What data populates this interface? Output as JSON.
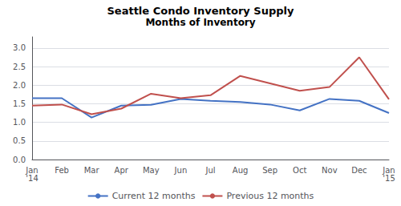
{
  "chart_data": {
    "type": "line",
    "title": "Seattle Condo Inventory Supply",
    "subtitle": "Months of Inventory",
    "categories": [
      "Jan\n'14",
      "Feb",
      "Mar",
      "Apr",
      "May",
      "Jun",
      "Jul",
      "Aug",
      "Sep",
      "Oct",
      "Nov",
      "Dec",
      "Jan\n'15"
    ],
    "series": [
      {
        "name": "Current 12 months",
        "color": "#4472C4",
        "values": [
          1.65,
          1.65,
          1.13,
          1.45,
          1.47,
          1.63,
          1.58,
          1.55,
          1.48,
          1.32,
          1.63,
          1.58,
          1.25
        ]
      },
      {
        "name": "Previous 12 months",
        "color": "#C0504D",
        "values": [
          1.45,
          1.48,
          1.22,
          1.37,
          1.77,
          1.65,
          1.73,
          2.25,
          2.05,
          1.85,
          1.95,
          2.75,
          1.62
        ]
      }
    ],
    "ylim": [
      0.0,
      3.3
    ],
    "yticks": [
      {
        "value": 0.0,
        "label": "0.0"
      },
      0.5,
      {
        "value": 1.0,
        "label": "1.0"
      },
      1.5,
      {
        "value": 2.0,
        "label": "2.0"
      },
      2.5,
      {
        "value": 3.0,
        "label": "3.0"
      }
    ],
    "grid": true,
    "legend": "bottom"
  }
}
